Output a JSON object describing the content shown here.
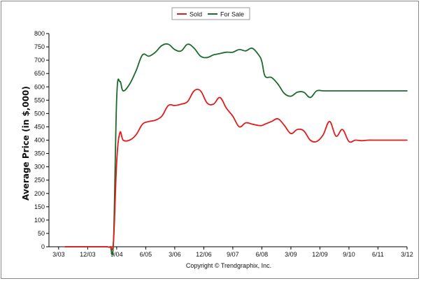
{
  "chart_data": {
    "type": "line",
    "ylabel": "Average Price (in $,000)",
    "xlabel": "",
    "footer": "Copyright © Trendgraphix, Inc.",
    "legend_position": "top-center",
    "grid": false,
    "ylim": [
      0,
      800
    ],
    "yticks": [
      0,
      50,
      100,
      150,
      200,
      250,
      300,
      350,
      400,
      450,
      500,
      550,
      600,
      650,
      700,
      750,
      800
    ],
    "x_tick_labels": [
      "3/03",
      "12/03",
      "9/04",
      "6/05",
      "3/06",
      "12/06",
      "9/07",
      "6/08",
      "3/09",
      "12/09",
      "9/10",
      "6/11",
      "3/12"
    ],
    "x_tick_positions": [
      0,
      9,
      18,
      27,
      36,
      45,
      54,
      63,
      72,
      81,
      90,
      99,
      108
    ],
    "xlim": [
      -3,
      108
    ],
    "series": [
      {
        "name": "Sold",
        "color": "#e31b1b",
        "x": [
          2,
          3,
          4,
          5,
          6,
          7,
          8,
          9,
          10,
          11,
          12,
          13,
          14,
          15,
          16,
          17,
          18,
          19,
          20,
          22,
          24,
          26,
          28,
          30,
          32,
          34,
          36,
          38,
          40,
          42,
          44,
          46,
          48,
          50,
          52,
          54,
          56,
          58,
          60,
          62,
          63,
          64,
          66,
          68,
          70,
          72,
          74,
          76,
          78,
          80,
          82,
          84,
          86,
          88,
          90,
          92,
          94,
          96,
          98,
          100,
          102,
          104,
          106,
          108
        ],
        "y": [
          0,
          0,
          0,
          0,
          0,
          0,
          0,
          0,
          0,
          0,
          0,
          0,
          0,
          0,
          0,
          20,
          320,
          428,
          400,
          400,
          420,
          460,
          470,
          475,
          490,
          530,
          530,
          535,
          545,
          585,
          585,
          540,
          535,
          560,
          520,
          490,
          450,
          465,
          460,
          455,
          455,
          460,
          470,
          480,
          455,
          425,
          440,
          435,
          400,
          395,
          420,
          470,
          415,
          440,
          395,
          400,
          398,
          400,
          400,
          400,
          400,
          400,
          400,
          400
        ]
      },
      {
        "name": "For Sale",
        "color": "#1c6a2c",
        "x": [
          2,
          3,
          4,
          5,
          6,
          7,
          8,
          9,
          10,
          11,
          12,
          13,
          14,
          15,
          16,
          17,
          18,
          19,
          20,
          22,
          24,
          26,
          28,
          30,
          32,
          34,
          36,
          38,
          40,
          42,
          44,
          46,
          48,
          50,
          52,
          54,
          56,
          58,
          60,
          62,
          63,
          64,
          66,
          68,
          70,
          72,
          74,
          76,
          78,
          80,
          82,
          84,
          86,
          88,
          90,
          92,
          94,
          96,
          98,
          100,
          102,
          104,
          106,
          108
        ],
        "y": [
          0,
          0,
          0,
          0,
          0,
          0,
          0,
          0,
          0,
          0,
          0,
          0,
          0,
          0,
          0,
          20,
          560,
          620,
          585,
          610,
          660,
          720,
          715,
          730,
          755,
          760,
          740,
          735,
          760,
          745,
          715,
          710,
          720,
          725,
          730,
          730,
          740,
          735,
          745,
          720,
          695,
          640,
          635,
          610,
          575,
          565,
          580,
          580,
          560,
          585,
          585,
          585,
          585,
          585,
          585,
          585,
          585,
          585,
          585,
          585,
          585,
          585,
          585,
          585
        ]
      }
    ]
  }
}
